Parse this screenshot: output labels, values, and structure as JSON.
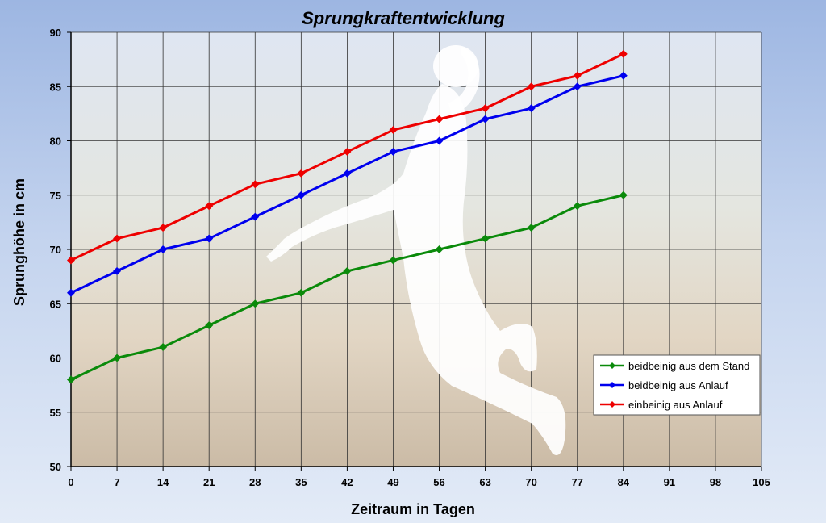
{
  "chart_data": {
    "type": "line",
    "title": "Sprungkraftentwicklung",
    "xlabel": "Zeitraum in Tagen",
    "ylabel": "Sprunghöhe in cm",
    "xlim": [
      0,
      105
    ],
    "ylim": [
      50,
      90
    ],
    "xticks": [
      0,
      7,
      14,
      21,
      28,
      35,
      42,
      49,
      56,
      63,
      70,
      77,
      84,
      91,
      98,
      105
    ],
    "yticks": [
      50,
      55,
      60,
      65,
      70,
      75,
      80,
      85,
      90
    ],
    "grid": true,
    "legend_position": "bottom-right",
    "x": [
      0,
      7,
      14,
      21,
      28,
      35,
      42,
      49,
      56,
      63,
      70,
      77,
      84
    ],
    "series": [
      {
        "name": "beidbeinig aus dem Stand",
        "color": "#0a8a0a",
        "values": [
          58,
          60,
          61,
          63,
          65,
          66,
          68,
          69,
          70,
          71,
          72,
          74,
          75
        ]
      },
      {
        "name": "beidbeinig aus Anlauf",
        "color": "#0000ee",
        "values": [
          66,
          68,
          70,
          71,
          73,
          75,
          77,
          79,
          80,
          82,
          83,
          85,
          86
        ]
      },
      {
        "name": "einbeinig aus Anlauf",
        "color": "#ee0000",
        "values": [
          69,
          71,
          72,
          74,
          76,
          77,
          79,
          81,
          82,
          83,
          85,
          86,
          88
        ]
      }
    ]
  }
}
